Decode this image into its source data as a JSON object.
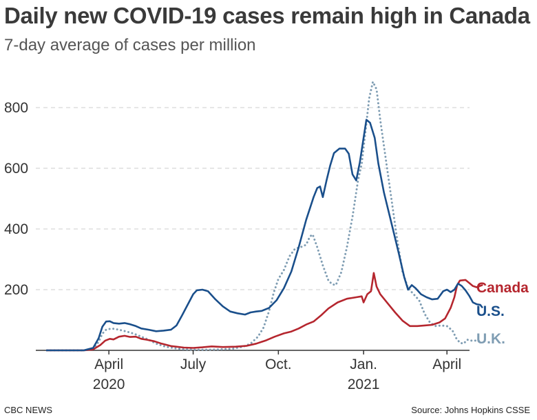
{
  "header": {
    "title": "Daily new COVID-19 cases remain high in Canada",
    "subtitle": "7-day average of cases per million"
  },
  "footer": {
    "credit": "CBC NEWS",
    "source": "Source: Johns Hopkins CSSE"
  },
  "colors": {
    "canada": "#b5262e",
    "us": "#1a4f8b",
    "uk": "#7f9db3",
    "grid": "#cccccc",
    "axis": "#333333"
  },
  "chart_data": {
    "type": "line",
    "title": "Daily new COVID-19 cases remain high in Canada",
    "subtitle": "7-day average of cases per million",
    "ylim": [
      0,
      900
    ],
    "xlim": [
      0,
      443
    ],
    "yticks": [
      {
        "label": "200",
        "value": 200
      },
      {
        "label": "400",
        "value": 400
      },
      {
        "label": "600",
        "value": 600
      },
      {
        "label": "800",
        "value": 800
      }
    ],
    "xticks": [
      {
        "label": "April",
        "sublabel": "2020",
        "value": 67
      },
      {
        "label": "July",
        "sublabel": "",
        "value": 158
      },
      {
        "label": "Oct.",
        "sublabel": "",
        "value": 250
      },
      {
        "label": "Jan.",
        "sublabel": "2021",
        "value": 342
      },
      {
        "label": "April",
        "sublabel": "",
        "value": 432
      }
    ],
    "grid": "horizontal dashed",
    "series": [
      {
        "name": "Canada",
        "style": "solid",
        "points": [
          [
            0,
            0
          ],
          [
            40,
            0
          ],
          [
            50,
            3
          ],
          [
            58,
            18
          ],
          [
            63,
            32
          ],
          [
            68,
            38
          ],
          [
            72,
            36
          ],
          [
            78,
            45
          ],
          [
            84,
            48
          ],
          [
            90,
            44
          ],
          [
            96,
            45
          ],
          [
            102,
            38
          ],
          [
            108,
            35
          ],
          [
            116,
            30
          ],
          [
            124,
            22
          ],
          [
            134,
            14
          ],
          [
            148,
            9
          ],
          [
            158,
            8
          ],
          [
            168,
            10
          ],
          [
            178,
            13
          ],
          [
            190,
            11
          ],
          [
            204,
            12
          ],
          [
            216,
            15
          ],
          [
            226,
            22
          ],
          [
            236,
            32
          ],
          [
            246,
            45
          ],
          [
            256,
            56
          ],
          [
            264,
            62
          ],
          [
            272,
            72
          ],
          [
            280,
            85
          ],
          [
            288,
            95
          ],
          [
            296,
            115
          ],
          [
            304,
            138
          ],
          [
            314,
            158
          ],
          [
            324,
            170
          ],
          [
            334,
            175
          ],
          [
            340,
            178
          ],
          [
            342,
            158
          ],
          [
            346,
            185
          ],
          [
            350,
            195
          ],
          [
            353,
            255
          ],
          [
            356,
            210
          ],
          [
            360,
            185
          ],
          [
            368,
            155
          ],
          [
            376,
            125
          ],
          [
            384,
            98
          ],
          [
            392,
            80
          ],
          [
            400,
            80
          ],
          [
            408,
            82
          ],
          [
            416,
            84
          ],
          [
            424,
            92
          ],
          [
            430,
            105
          ],
          [
            436,
            140
          ],
          [
            440,
            175
          ],
          [
            443,
            215
          ],
          [
            446,
            230
          ],
          [
            452,
            232
          ],
          [
            456,
            222
          ],
          [
            460,
            212
          ],
          [
            464,
            208
          ],
          [
            470,
            215
          ]
        ]
      },
      {
        "name": "U.S.",
        "style": "solid",
        "points": [
          [
            0,
            0
          ],
          [
            40,
            0
          ],
          [
            50,
            8
          ],
          [
            56,
            40
          ],
          [
            60,
            78
          ],
          [
            64,
            95
          ],
          [
            68,
            96
          ],
          [
            72,
            90
          ],
          [
            78,
            88
          ],
          [
            84,
            90
          ],
          [
            90,
            86
          ],
          [
            96,
            80
          ],
          [
            102,
            72
          ],
          [
            110,
            68
          ],
          [
            118,
            63
          ],
          [
            126,
            65
          ],
          [
            134,
            68
          ],
          [
            140,
            82
          ],
          [
            146,
            115
          ],
          [
            152,
            150
          ],
          [
            158,
            185
          ],
          [
            162,
            198
          ],
          [
            168,
            200
          ],
          [
            174,
            195
          ],
          [
            182,
            168
          ],
          [
            190,
            145
          ],
          [
            198,
            128
          ],
          [
            206,
            122
          ],
          [
            214,
            118
          ],
          [
            220,
            125
          ],
          [
            226,
            128
          ],
          [
            232,
            130
          ],
          [
            240,
            140
          ],
          [
            248,
            165
          ],
          [
            256,
            205
          ],
          [
            264,
            260
          ],
          [
            272,
            340
          ],
          [
            280,
            430
          ],
          [
            288,
            505
          ],
          [
            292,
            535
          ],
          [
            295,
            540
          ],
          [
            298,
            505
          ],
          [
            302,
            560
          ],
          [
            306,
            610
          ],
          [
            310,
            650
          ],
          [
            316,
            665
          ],
          [
            322,
            665
          ],
          [
            326,
            648
          ],
          [
            330,
            580
          ],
          [
            334,
            560
          ],
          [
            338,
            620
          ],
          [
            342,
            700
          ],
          [
            345,
            760
          ],
          [
            349,
            750
          ],
          [
            354,
            700
          ],
          [
            358,
            615
          ],
          [
            364,
            520
          ],
          [
            372,
            420
          ],
          [
            380,
            320
          ],
          [
            386,
            240
          ],
          [
            390,
            200
          ],
          [
            394,
            215
          ],
          [
            398,
            205
          ],
          [
            404,
            185
          ],
          [
            410,
            175
          ],
          [
            416,
            168
          ],
          [
            422,
            170
          ],
          [
            428,
            195
          ],
          [
            432,
            200
          ],
          [
            436,
            192
          ],
          [
            440,
            200
          ],
          [
            444,
            220
          ],
          [
            448,
            212
          ],
          [
            452,
            198
          ],
          [
            456,
            180
          ],
          [
            460,
            158
          ],
          [
            464,
            152
          ],
          [
            468,
            150
          ],
          [
            470,
            142
          ]
        ]
      },
      {
        "name": "U.K.",
        "style": "dotted",
        "points": [
          [
            0,
            0
          ],
          [
            40,
            0
          ],
          [
            50,
            5
          ],
          [
            56,
            28
          ],
          [
            60,
            55
          ],
          [
            64,
            68
          ],
          [
            70,
            72
          ],
          [
            78,
            68
          ],
          [
            86,
            62
          ],
          [
            94,
            55
          ],
          [
            102,
            45
          ],
          [
            110,
            35
          ],
          [
            118,
            22
          ],
          [
            128,
            12
          ],
          [
            140,
            6
          ],
          [
            150,
            3
          ],
          [
            160,
            2
          ],
          [
            172,
            2
          ],
          [
            186,
            3
          ],
          [
            200,
            5
          ],
          [
            212,
            12
          ],
          [
            220,
            22
          ],
          [
            228,
            45
          ],
          [
            234,
            75
          ],
          [
            240,
            130
          ],
          [
            245,
            190
          ],
          [
            250,
            235
          ],
          [
            256,
            265
          ],
          [
            262,
            310
          ],
          [
            268,
            335
          ],
          [
            274,
            340
          ],
          [
            280,
            348
          ],
          [
            284,
            375
          ],
          [
            287,
            382
          ],
          [
            292,
            340
          ],
          [
            298,
            280
          ],
          [
            304,
            230
          ],
          [
            308,
            218
          ],
          [
            312,
            215
          ],
          [
            318,
            258
          ],
          [
            324,
            340
          ],
          [
            330,
            440
          ],
          [
            336,
            560
          ],
          [
            340,
            615
          ],
          [
            344,
            720
          ],
          [
            348,
            830
          ],
          [
            352,
            885
          ],
          [
            356,
            860
          ],
          [
            360,
            760
          ],
          [
            366,
            630
          ],
          [
            372,
            500
          ],
          [
            378,
            370
          ],
          [
            384,
            260
          ],
          [
            390,
            205
          ],
          [
            396,
            185
          ],
          [
            402,
            165
          ],
          [
            408,
            120
          ],
          [
            414,
            90
          ],
          [
            420,
            80
          ],
          [
            426,
            82
          ],
          [
            432,
            80
          ],
          [
            438,
            65
          ],
          [
            442,
            40
          ],
          [
            446,
            25
          ],
          [
            450,
            22
          ],
          [
            454,
            35
          ],
          [
            458,
            32
          ],
          [
            464,
            32
          ],
          [
            470,
            28
          ]
        ]
      }
    ],
    "legend": "inline labels at right end of each line"
  }
}
